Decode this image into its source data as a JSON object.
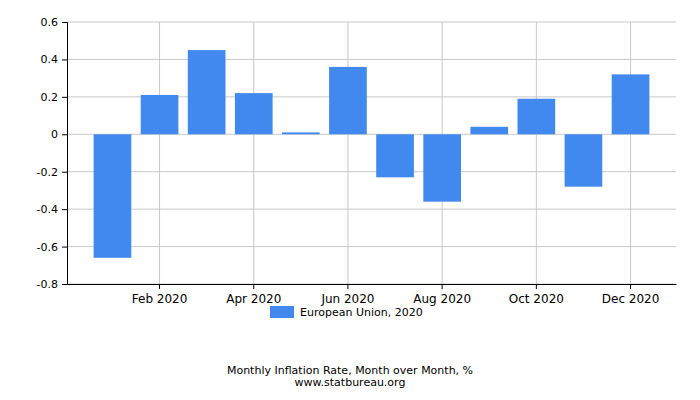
{
  "chart_data": {
    "type": "bar",
    "title": "Monthly Inflation Rate, Month over Month, %",
    "subtitle": "www.statbureau.org",
    "categories": [
      null,
      "Feb 2020",
      null,
      "Apr 2020",
      null,
      "Jun 2020",
      null,
      "Aug 2020",
      null,
      "Oct 2020",
      null,
      "Dec 2020"
    ],
    "series": [
      {
        "name": "European Union, 2020",
        "color": "#4189ee",
        "values": [
          -0.66,
          0.21,
          0.45,
          0.22,
          0.01,
          0.36,
          -0.23,
          -0.36,
          0.04,
          0.19,
          -0.28,
          0.32
        ]
      }
    ],
    "ylim": [
      -0.8,
      0.6
    ],
    "yticks": [
      -0.8,
      -0.6,
      -0.4,
      -0.2,
      0,
      0.2,
      0.4,
      0.6
    ],
    "grid": true
  }
}
